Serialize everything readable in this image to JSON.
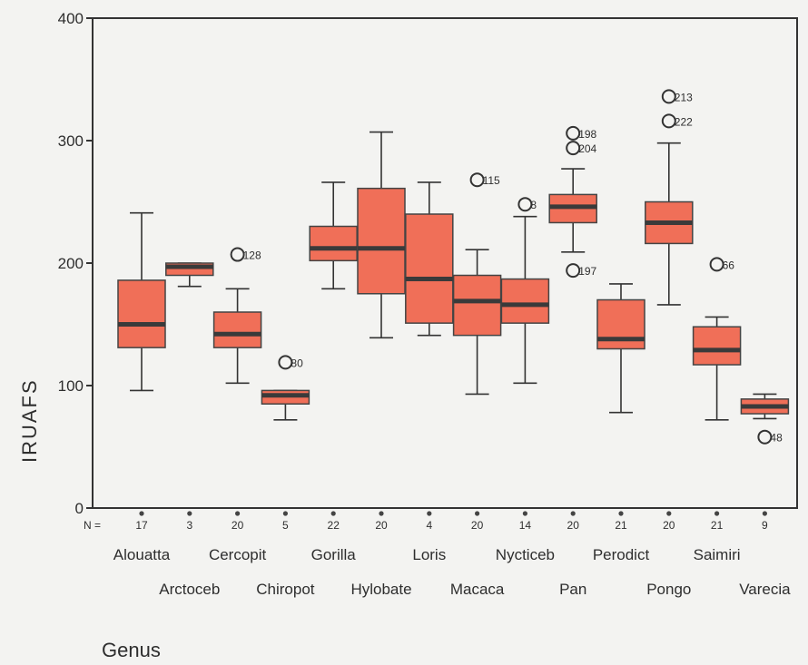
{
  "chart_data": {
    "type": "boxplot",
    "xlabel": "Genus",
    "ylabel": "IRUAFS",
    "ylim": [
      0,
      400
    ],
    "yticks": [
      0,
      100,
      200,
      300,
      400
    ],
    "n_label": "N =",
    "box_color": "#f06f58",
    "median_color": "#3a3a3a",
    "categories": [
      {
        "name": "Alouatta",
        "n": "17",
        "min": 96,
        "q1": 131,
        "median": 150,
        "q3": 186,
        "max": 241,
        "outliers": []
      },
      {
        "name": "Arctoceb",
        "n": "3",
        "min": 181,
        "q1": 190,
        "median": 197,
        "q3": 200,
        "max": 200,
        "outliers": []
      },
      {
        "name": "Cercopit",
        "n": "20",
        "min": 102,
        "q1": 131,
        "median": 142,
        "q3": 160,
        "max": 179,
        "outliers": [
          {
            "value": 207,
            "label": "128"
          }
        ]
      },
      {
        "name": "Chiropot",
        "n": "5",
        "min": 72,
        "q1": 85,
        "median": 92,
        "q3": 96,
        "max": 96,
        "outliers": [
          {
            "value": 119,
            "label": "80"
          }
        ]
      },
      {
        "name": "Gorilla",
        "n": "22",
        "min": 179,
        "q1": 202,
        "median": 212,
        "q3": 230,
        "max": 266,
        "outliers": []
      },
      {
        "name": "Hylobate",
        "n": "20",
        "min": 139,
        "q1": 175,
        "median": 212,
        "q3": 261,
        "max": 307,
        "outliers": []
      },
      {
        "name": "Loris",
        "n": "4",
        "min": 141,
        "q1": 151,
        "median": 187,
        "q3": 240,
        "max": 266,
        "outliers": []
      },
      {
        "name": "Macaca",
        "n": "20",
        "min": 93,
        "q1": 141,
        "median": 169,
        "q3": 190,
        "max": 211,
        "outliers": [
          {
            "value": 268,
            "label": "115"
          }
        ]
      },
      {
        "name": "Nycticeb",
        "n": "14",
        "min": 102,
        "q1": 151,
        "median": 166,
        "q3": 187,
        "max": 238,
        "outliers": [
          {
            "value": 248,
            "label": "8"
          }
        ]
      },
      {
        "name": "Pan",
        "n": "20",
        "min": 209,
        "q1": 233,
        "median": 246,
        "q3": 256,
        "max": 277,
        "outliers": [
          {
            "value": 306,
            "label": "198"
          },
          {
            "value": 294,
            "label": "204"
          },
          {
            "value": 194,
            "label": "197"
          }
        ]
      },
      {
        "name": "Perodict",
        "n": "21",
        "min": 78,
        "q1": 130,
        "median": 138,
        "q3": 170,
        "max": 183,
        "outliers": []
      },
      {
        "name": "Pongo",
        "n": "20",
        "min": 166,
        "q1": 216,
        "median": 233,
        "q3": 250,
        "max": 298,
        "outliers": [
          {
            "value": 336,
            "label": "213"
          },
          {
            "value": 316,
            "label": "222"
          }
        ]
      },
      {
        "name": "Saimiri",
        "n": "21",
        "min": 72,
        "q1": 117,
        "median": 129,
        "q3": 148,
        "max": 156,
        "outliers": [
          {
            "value": 199,
            "label": "66"
          }
        ]
      },
      {
        "name": "Varecia",
        "n": "9",
        "min": 73,
        "q1": 77,
        "median": 83,
        "q3": 89,
        "max": 93,
        "outliers": [
          {
            "value": 58,
            "label": "48"
          }
        ]
      }
    ]
  }
}
